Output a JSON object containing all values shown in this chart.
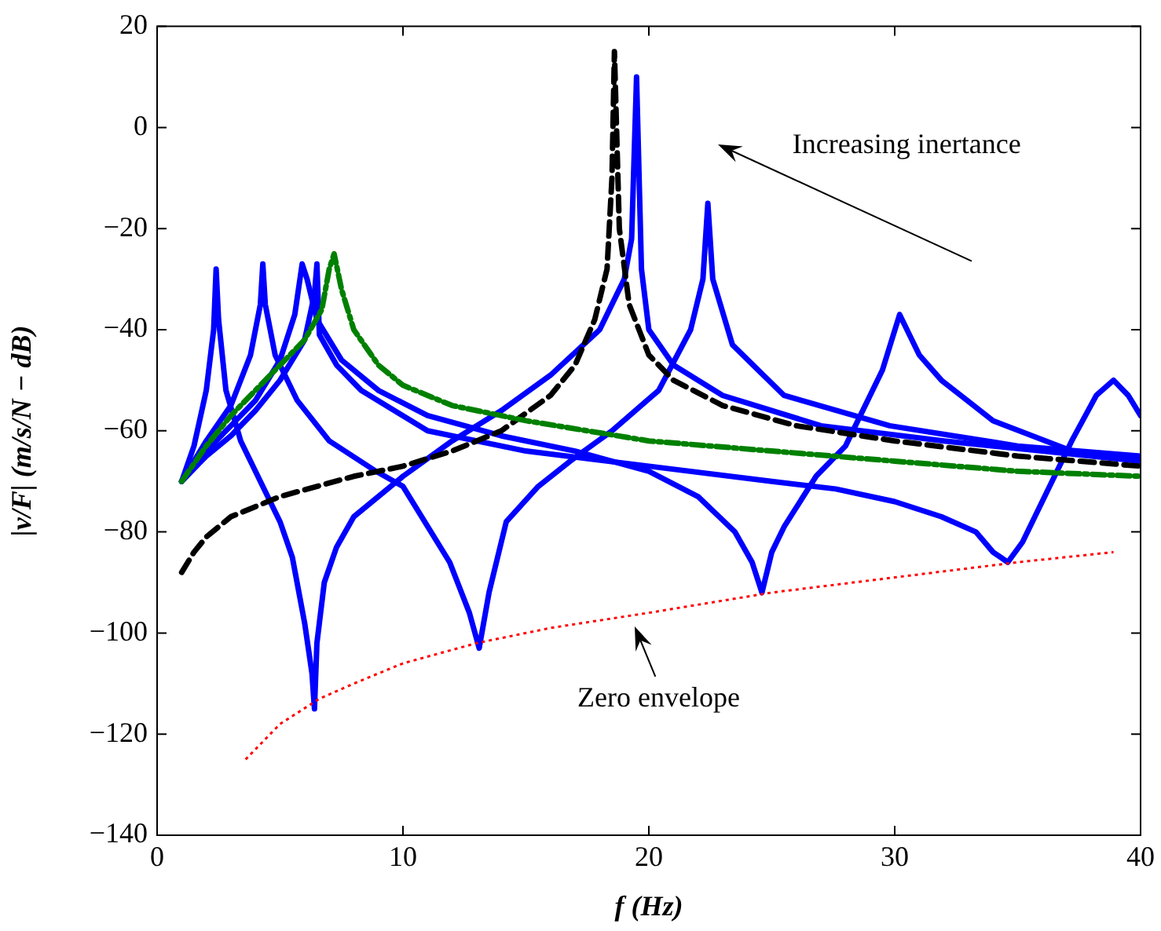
{
  "chart_data": {
    "type": "line",
    "xlabel": "f (Hz)",
    "ylabel": "|v/F| (m/s/N − dB)",
    "xlim": [
      0,
      40
    ],
    "ylim": [
      -140,
      20
    ],
    "xticks": [
      0,
      10,
      20,
      30,
      40
    ],
    "yticks": [
      -140,
      -120,
      -100,
      -80,
      -60,
      -40,
      -20,
      0,
      20
    ],
    "grid": false,
    "legend": false,
    "marker": "none",
    "annotations": [
      "Increasing inertance",
      "Zero envelope"
    ],
    "series": [
      {
        "color": "#0000ff",
        "line_style": "solid",
        "x": [
          1,
          1.5,
          2,
          2.3,
          2.4,
          2.5,
          2.8,
          3.4,
          4.2,
          5,
          5.5,
          6,
          6.3,
          6.4,
          6.5,
          6.8,
          7.3,
          8,
          9,
          10,
          12,
          14,
          16,
          18,
          19,
          19.3,
          19.5,
          19.7,
          20,
          21,
          23,
          27,
          32,
          36,
          40
        ],
        "values": [
          -70,
          -63,
          -52,
          -40,
          -28,
          -38,
          -52,
          -62,
          -70,
          -78,
          -85,
          -98,
          -108,
          -115,
          -102,
          -90,
          -83,
          -77,
          -73,
          -69,
          -62,
          -56,
          -49,
          -40,
          -30,
          -22,
          10,
          -28,
          -40,
          -47,
          -53,
          -59,
          -62,
          -64,
          -66
        ]
      },
      {
        "color": "#0000ff",
        "line_style": "solid",
        "x": [
          1,
          2,
          3,
          3.8,
          4.2,
          4.3,
          4.4,
          4.8,
          5.7,
          7,
          8.9,
          10,
          11.9,
          12.7,
          13.1,
          13.5,
          14.2,
          15.5,
          16.8,
          18.5,
          20.4,
          21.7,
          22.2,
          22.4,
          22.6,
          23.4,
          25.5,
          29.8,
          35,
          40
        ],
        "values": [
          -70,
          -62,
          -55,
          -45,
          -35,
          -27,
          -35,
          -45,
          -54,
          -62,
          -68,
          -71,
          -86,
          -96,
          -103,
          -92,
          -78,
          -71,
          -66,
          -60,
          -52,
          -40,
          -30,
          -15,
          -30,
          -43,
          -53,
          -59,
          -63,
          -65
        ]
      },
      {
        "color": "#0000ff",
        "line_style": "solid",
        "x": [
          1,
          2,
          3,
          4,
          5,
          5.6,
          5.9,
          6.1,
          6.5,
          7.5,
          9,
          11,
          14,
          17,
          20,
          22,
          23.5,
          24.2,
          24.6,
          25,
          25.5,
          26.8,
          28,
          29.5,
          30.2,
          31,
          31.9,
          34,
          37.2,
          40
        ],
        "values": [
          -70,
          -64,
          -59,
          -54,
          -46,
          -37,
          -27,
          -30,
          -38,
          -46,
          -52,
          -57,
          -61,
          -64,
          -68,
          -73,
          -80,
          -86,
          -92,
          -84,
          -79,
          -69,
          -63,
          -48,
          -37,
          -45,
          -50,
          -58,
          -64,
          -66
        ]
      },
      {
        "color": "#0000ff",
        "line_style": "solid",
        "x": [
          1,
          2,
          3,
          4,
          5,
          6,
          6.4,
          6.5,
          6.6,
          7.3,
          8.3,
          11,
          15,
          20,
          25,
          27.6,
          30,
          31.9,
          33.3,
          34,
          34.6,
          35.2,
          36.2,
          37.2,
          38.2,
          38.9,
          39.5,
          40
        ],
        "values": [
          -70,
          -65,
          -61,
          -56,
          -50,
          -42,
          -33,
          -27,
          -41,
          -47,
          -52,
          -60,
          -64,
          -67,
          -70,
          -71.5,
          -74,
          -77,
          -80,
          -84,
          -86,
          -82,
          -72,
          -62,
          -53,
          -50,
          -53,
          -57
        ]
      },
      {
        "color": "#000000",
        "line_style": "dashed",
        "x": [
          1,
          1.5,
          2,
          3,
          5,
          8,
          10,
          12,
          14,
          16,
          17,
          17.8,
          18.3,
          18.5,
          18.6,
          18.8,
          19.2,
          20,
          21,
          23,
          26,
          30,
          35,
          40
        ],
        "values": [
          -88,
          -84,
          -81,
          -77,
          -73,
          -69,
          -67,
          -64,
          -60,
          -53,
          -47,
          -38,
          -28,
          -10,
          15,
          -20,
          -35,
          -45,
          -50,
          -55,
          -59,
          -62,
          -65,
          -67
        ]
      },
      {
        "color": "#008000",
        "line_style": "dashdot",
        "x": [
          1,
          2,
          3,
          4,
          5,
          6,
          6.7,
          7,
          7.2,
          7.5,
          8,
          9,
          10,
          12,
          15,
          20,
          25,
          30,
          35,
          40
        ],
        "values": [
          -70,
          -63,
          -57,
          -52,
          -47,
          -42,
          -36,
          -28,
          -25,
          -32,
          -40,
          -47,
          -51,
          -55,
          -58,
          -62,
          -64,
          -66,
          -68,
          -69
        ]
      },
      {
        "color": "#ff0000",
        "line_style": "dotted",
        "x": [
          3.6,
          5,
          6.6,
          8,
          10,
          13,
          16,
          20,
          25,
          30,
          35,
          38.9
        ],
        "values": [
          -125,
          -118,
          -113,
          -110,
          -106,
          -102,
          -99,
          -96,
          -92,
          -89,
          -86,
          -84
        ]
      }
    ]
  }
}
